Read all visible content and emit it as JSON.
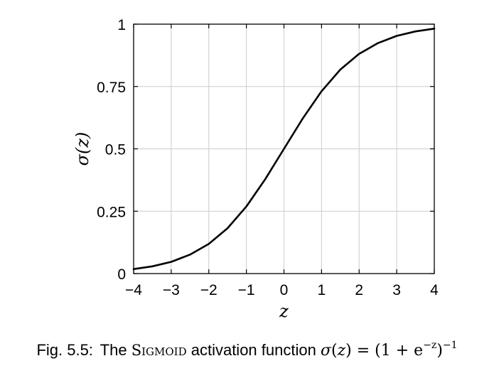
{
  "chart_data": {
    "type": "line",
    "xlabel": "z",
    "ylabel": "σ(z)",
    "xlim": [
      -4,
      4
    ],
    "ylim": [
      0,
      1
    ],
    "grid": true,
    "x_ticks": [
      {
        "value": -4,
        "label": "−4"
      },
      {
        "value": -3,
        "label": "−3"
      },
      {
        "value": -2,
        "label": "−2"
      },
      {
        "value": -1,
        "label": "−1"
      },
      {
        "value": 0,
        "label": "0"
      },
      {
        "value": 1,
        "label": "1"
      },
      {
        "value": 2,
        "label": "2"
      },
      {
        "value": 3,
        "label": "3"
      },
      {
        "value": 4,
        "label": "4"
      }
    ],
    "y_ticks": [
      {
        "value": 0,
        "label": "0"
      },
      {
        "value": 0.25,
        "label": "0.25"
      },
      {
        "value": 0.5,
        "label": "0.5"
      },
      {
        "value": 0.75,
        "label": "0.75"
      },
      {
        "value": 1,
        "label": "1"
      }
    ],
    "series": [
      {
        "x": [
          -4,
          -3.5,
          -3,
          -2.5,
          -2,
          -1.5,
          -1,
          -0.5,
          0,
          0.5,
          1,
          1.5,
          2,
          2.5,
          3,
          3.5,
          4
        ],
        "y": [
          0.018,
          0.029,
          0.047,
          0.076,
          0.119,
          0.182,
          0.269,
          0.378,
          0.5,
          0.622,
          0.731,
          0.818,
          0.881,
          0.924,
          0.953,
          0.971,
          0.982
        ]
      }
    ],
    "colors": {
      "line": "#000000",
      "grid": "#cccccc",
      "axis": "#000000"
    }
  },
  "caption": {
    "prefix": "Fig.  5.5:",
    "text_before": "The",
    "name": "Sigmoid",
    "text_after": "activation function",
    "sigma": "σ",
    "open_paren": "(",
    "var": "z",
    "equals_rhs_open": ") = (1 + e",
    "exponent": "−z",
    "close": ")",
    "outer_exponent": "−1"
  }
}
